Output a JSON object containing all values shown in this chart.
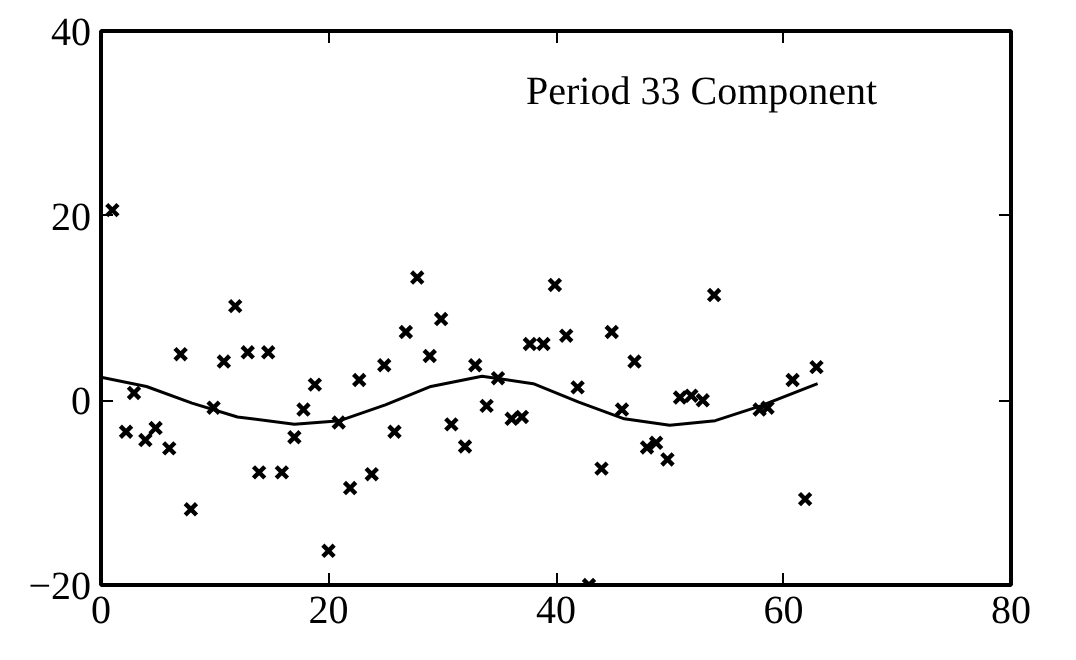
{
  "chart_data": {
    "type": "scatter",
    "title": "Period 33 Component",
    "marker": "cross",
    "grid": false,
    "xlim": [
      0,
      80
    ],
    "ylim": [
      -20,
      40
    ],
    "xticks": [
      0,
      20,
      40,
      60,
      80
    ],
    "yticks": [
      -20,
      0,
      20,
      40
    ],
    "series": [
      {
        "color": "#000000",
        "x": [
          1.0,
          2.2,
          2.9,
          3.9,
          4.8,
          6.0,
          7.0,
          7.9,
          9.9,
          10.8,
          11.8,
          12.9,
          13.9,
          14.7,
          15.9,
          17.0,
          17.8,
          18.8,
          20.0,
          20.9,
          21.9,
          22.7,
          23.8,
          24.9,
          25.8,
          26.8,
          27.8,
          28.9,
          29.9,
          30.8,
          32.0,
          32.9,
          33.9,
          34.9,
          36.1,
          37.0,
          37.7,
          38.9,
          39.9,
          40.9,
          41.9,
          42.9,
          44.0,
          44.9,
          45.8,
          46.9,
          48.0,
          48.8,
          49.8,
          50.9,
          51.9,
          52.9,
          53.9,
          57.9,
          58.6,
          60.8,
          61.9,
          62.9
        ],
        "values": [
          20.6,
          -3.4,
          0.8,
          -4.3,
          -3.0,
          -5.2,
          5.0,
          -11.8,
          -0.8,
          4.2,
          10.2,
          5.2,
          -7.8,
          5.2,
          -7.8,
          -4.0,
          -1.0,
          1.7,
          -16.3,
          -2.4,
          -9.5,
          2.2,
          -8.0,
          3.8,
          -3.4,
          7.4,
          13.3,
          4.8,
          8.8,
          -2.6,
          -5.0,
          3.8,
          -0.6,
          2.4,
          -2.0,
          -1.8,
          6.1,
          6.1,
          12.5,
          7.0,
          1.4,
          -20.0,
          -7.4,
          7.4,
          -1.0,
          4.2,
          -5.1,
          -4.6,
          -6.4,
          0.3,
          0.5,
          0.0,
          11.4,
          -1.0,
          -0.8,
          2.2,
          -10.7,
          3.6
        ]
      },
      {
        "type": "line",
        "color": "#000000",
        "marker": "none",
        "line_style": "solid",
        "x": [
          0,
          4,
          8,
          12,
          17,
          21,
          25,
          29,
          33.5,
          38,
          42,
          46,
          50,
          54,
          58,
          63
        ],
        "values": [
          2.5,
          1.5,
          -0.3,
          -1.8,
          -2.6,
          -2.2,
          -0.5,
          1.5,
          2.6,
          1.8,
          -0.2,
          -2.0,
          -2.7,
          -2.2,
          -0.6,
          1.8
        ]
      }
    ]
  }
}
